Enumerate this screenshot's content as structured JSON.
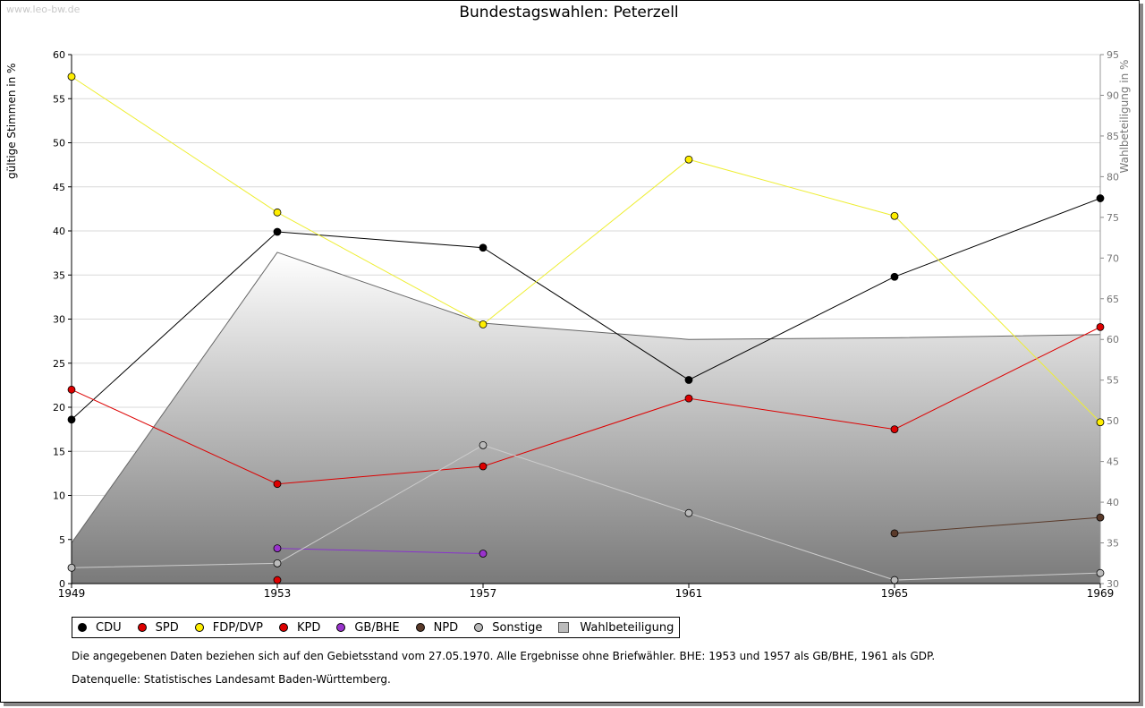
{
  "watermark": "www.leo-bw.de",
  "title": "Bundestagswahlen: Peterzell",
  "chart_data": {
    "type": "line",
    "title": "Bundestagswahlen: Peterzell",
    "x": [
      1949,
      1953,
      1957,
      1961,
      1965,
      1969
    ],
    "ylabel": "gültige Stimmen in %",
    "ylabel_right": "Wahlbeteiligung in %",
    "ylim": [
      0,
      60
    ],
    "y2lim": [
      30,
      95
    ],
    "yticks": [
      0,
      5,
      10,
      15,
      20,
      25,
      30,
      35,
      40,
      45,
      50,
      55,
      60
    ],
    "y2ticks": [
      30,
      35,
      40,
      45,
      50,
      55,
      60,
      65,
      70,
      75,
      80,
      85,
      90,
      95
    ],
    "grid": true,
    "series": [
      {
        "name": "CDU",
        "color": "#000000",
        "line": "#000000",
        "values": [
          18.6,
          39.9,
          38.1,
          23.1,
          34.8,
          43.7
        ]
      },
      {
        "name": "SPD",
        "color": "#dd0000",
        "line": "#dd0000",
        "values": [
          22.0,
          11.3,
          13.3,
          21.0,
          17.5,
          29.1
        ]
      },
      {
        "name": "FDP/DVP",
        "color": "#ffee00",
        "line": "#eeee33",
        "values": [
          57.5,
          42.1,
          29.4,
          48.1,
          41.7,
          18.3
        ]
      },
      {
        "name": "KPD",
        "color": "#dd0000",
        "line": "#dd0000",
        "values": [
          null,
          0.4,
          null,
          null,
          null,
          null
        ]
      },
      {
        "name": "GB/BHE",
        "color": "#9933cc",
        "line": "#8833cc",
        "values": [
          null,
          4.0,
          3.4,
          null,
          null,
          null
        ]
      },
      {
        "name": "NPD",
        "color": "#5a3a2a",
        "line": "#5a3a2a",
        "values": [
          null,
          null,
          null,
          null,
          5.7,
          7.5
        ]
      },
      {
        "name": "Sonstige",
        "color": "#bbbbbb",
        "line": "#cccccc",
        "values": [
          1.8,
          2.3,
          15.7,
          8.0,
          0.4,
          1.2
        ]
      }
    ],
    "turnout": {
      "name": "Wahlbeteiligung",
      "axis": "right",
      "values": [
        35.0,
        70.7,
        62.0,
        60.0,
        60.2,
        60.6
      ]
    }
  },
  "legend": {
    "items": [
      {
        "label": "CDU",
        "color": "#000000"
      },
      {
        "label": "SPD",
        "color": "#dd0000"
      },
      {
        "label": "FDP/DVP",
        "color": "#ffee00"
      },
      {
        "label": "KPD",
        "color": "#dd0000"
      },
      {
        "label": "GB/BHE",
        "color": "#9933cc"
      },
      {
        "label": "NPD",
        "color": "#5a3a2a"
      },
      {
        "label": "Sonstige",
        "color": "#bbbbbb"
      }
    ],
    "area_label": "Wahlbeteiligung"
  },
  "notes": {
    "line1": "Die angegebenen Daten beziehen sich auf den Gebietsstand vom 27.05.1970. Alle Ergebnisse ohne Briefwähler. BHE: 1953 und 1957 als GB/BHE, 1961 als GDP.",
    "line2": "Datenquelle: Statistisches Landesamt Baden-Württemberg."
  }
}
